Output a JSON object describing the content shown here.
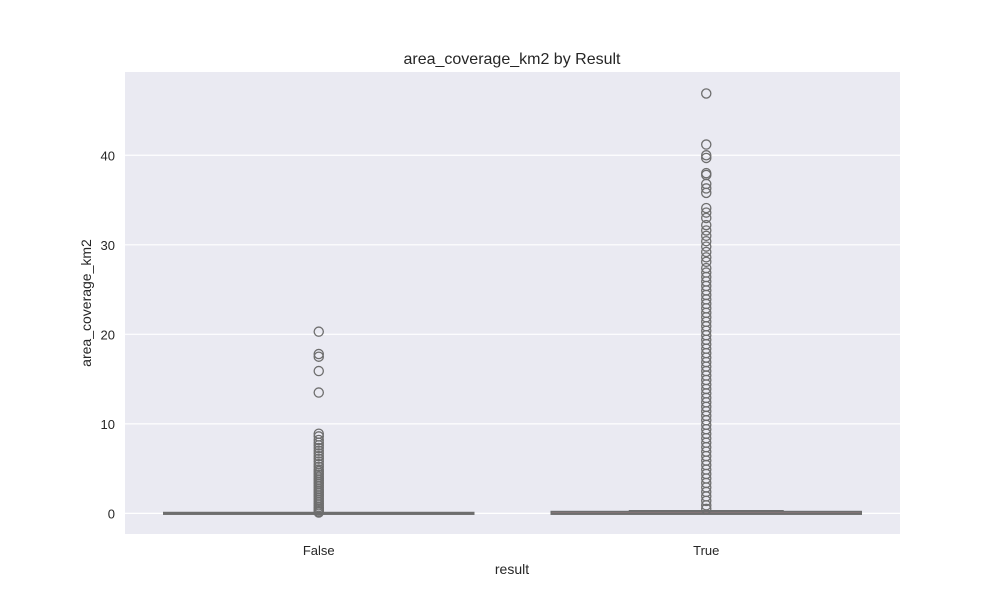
{
  "chart_data": {
    "type": "box",
    "title": "area_coverage_km2 by Result",
    "xlabel": "result",
    "ylabel": "area_coverage_km2",
    "categories": [
      "False",
      "True"
    ],
    "ylim": [
      -2.3,
      49.3
    ],
    "yticks": [
      0,
      10,
      20,
      30,
      40
    ],
    "grid": true,
    "colors": {
      "background": "#eaeaf2",
      "grid": "#ffffff",
      "box_fill": "#ea96a3",
      "line": "#6e6e6e",
      "text": "#262626"
    },
    "series": [
      {
        "category": "False",
        "whisker_low": 0.0,
        "q1": 0.0,
        "median": 0.0,
        "q3": 0.01,
        "whisker_high": 0.03,
        "outliers": [
          20.3,
          17.8,
          17.5,
          15.9,
          13.5,
          8.9,
          8.6,
          8.2,
          7.9,
          7.6,
          7.3,
          7.0,
          6.7,
          6.4,
          6.1,
          5.8,
          5.5,
          5.2,
          4.9,
          4.7,
          4.5,
          4.3,
          4.1,
          3.9,
          3.7,
          3.5,
          3.3,
          3.1,
          2.9,
          2.7,
          2.5,
          2.3,
          2.1,
          1.9,
          1.7,
          1.5,
          1.3,
          1.1,
          0.9,
          0.7,
          0.5,
          0.35,
          0.2,
          0.1
        ]
      },
      {
        "category": "True",
        "whisker_low": 0.0,
        "q1": 0.0,
        "median": 0.03,
        "q3": 0.12,
        "whisker_high": 0.3,
        "outliers": [
          46.9,
          41.2,
          40.0,
          39.7,
          38.0,
          37.8,
          36.8,
          36.3,
          35.8,
          34.1,
          33.6,
          33.0,
          32.2,
          31.6,
          31.0,
          30.4,
          29.8,
          29.2,
          28.6,
          28.1,
          27.4,
          26.9,
          26.4,
          25.9,
          25.4,
          24.9,
          24.4,
          23.9,
          23.4,
          22.9,
          22.4,
          21.9,
          21.4,
          20.9,
          20.4,
          19.9,
          19.4,
          18.9,
          18.4,
          17.9,
          17.4,
          16.9,
          16.4,
          15.9,
          15.4,
          14.9,
          14.4,
          13.9,
          13.4,
          12.9,
          12.4,
          11.9,
          11.4,
          10.9,
          10.4,
          9.9,
          9.4,
          8.9,
          8.4,
          7.9,
          7.4,
          6.9,
          6.4,
          5.9,
          5.4,
          4.9,
          4.4,
          3.9,
          3.4,
          2.9,
          2.4,
          1.9,
          1.4,
          0.9,
          0.5
        ]
      }
    ]
  }
}
